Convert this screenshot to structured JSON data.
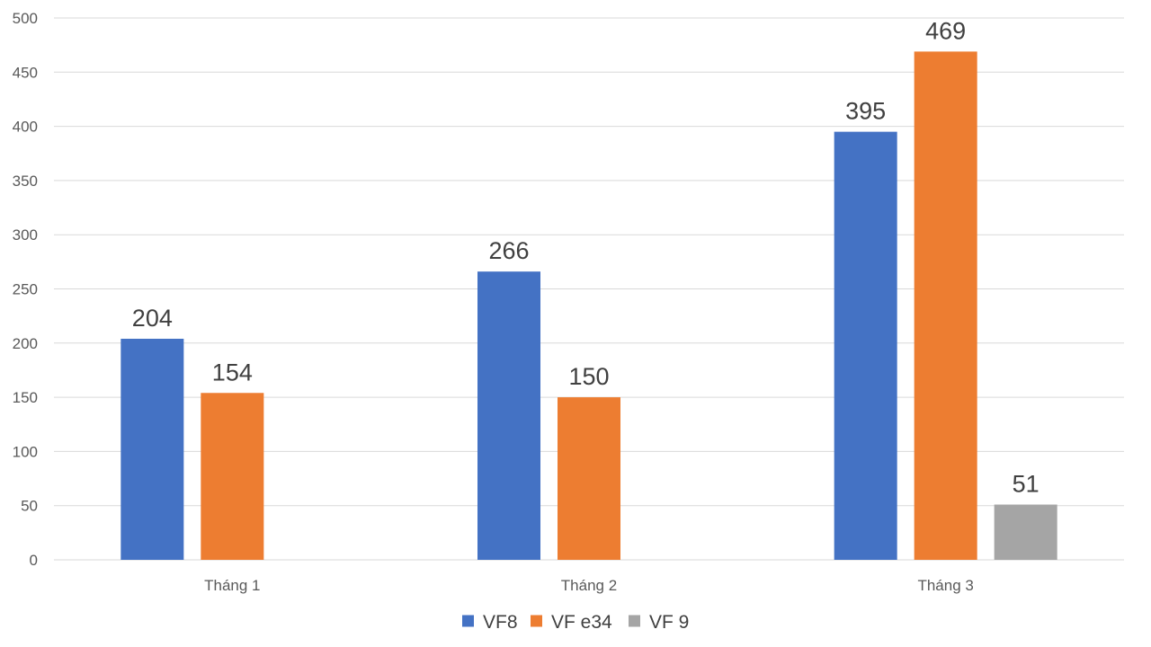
{
  "chart_data": {
    "type": "bar",
    "categories": [
      "Tháng 1",
      "Tháng 2",
      "Tháng 3"
    ],
    "series": [
      {
        "name": "VF8",
        "color": "#4472c4",
        "values": [
          204,
          266,
          395
        ]
      },
      {
        "name": "VF e34",
        "color": "#ed7d31",
        "values": [
          154,
          150,
          469
        ]
      },
      {
        "name": "VF 9",
        "color": "#a5a5a5",
        "values": [
          null,
          null,
          51
        ]
      }
    ],
    "ylim": [
      0,
      500
    ],
    "yticks": [
      0,
      50,
      100,
      150,
      200,
      250,
      300,
      350,
      400,
      450,
      500
    ],
    "grid": true,
    "legend": "bottom-center",
    "data_labels": true,
    "title": "",
    "xlabel": "",
    "ylabel": ""
  }
}
